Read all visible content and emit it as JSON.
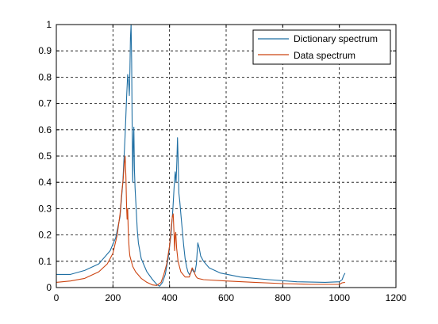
{
  "chart_data": {
    "type": "line",
    "title": "",
    "xlabel": "",
    "ylabel": "",
    "xlim": [
      0,
      1200
    ],
    "ylim": [
      0,
      1
    ],
    "xticks": [
      0,
      200,
      400,
      600,
      800,
      1000,
      1200
    ],
    "yticks": [
      0,
      0.1,
      0.2,
      0.3,
      0.4,
      0.5,
      0.6,
      0.7,
      0.8,
      0.9,
      1
    ],
    "xtick_labels": [
      "0",
      "200",
      "400",
      "600",
      "800",
      "1000",
      "1200"
    ],
    "ytick_labels": [
      "0",
      "0.1",
      "0.2",
      "0.3",
      "0.4",
      "0.5",
      "0.6",
      "0.7",
      "0.8",
      "0.9",
      "1"
    ],
    "grid": true,
    "legend_position": "top-right",
    "series": [
      {
        "name": "Dictionary spectrum",
        "color": "#1f6fa3",
        "x": [
          0,
          50,
          100,
          150,
          190,
          210,
          225,
          235,
          243,
          248,
          252,
          256,
          258,
          260,
          262,
          264,
          266,
          268,
          270,
          272,
          274,
          276,
          278,
          282,
          286,
          290,
          300,
          320,
          340,
          355,
          365,
          375,
          385,
          395,
          405,
          412,
          416,
          420,
          423,
          426,
          428,
          430,
          433,
          436,
          440,
          445,
          450,
          455,
          460,
          465,
          470,
          475,
          480,
          485,
          490,
          495,
          500,
          505,
          510,
          520,
          540,
          580,
          650,
          750,
          850,
          950,
          1000,
          1010,
          1015,
          1020
        ],
        "y": [
          0.05,
          0.05,
          0.065,
          0.09,
          0.14,
          0.19,
          0.27,
          0.4,
          0.58,
          0.72,
          0.81,
          0.77,
          0.73,
          0.82,
          0.95,
          1.0,
          0.86,
          0.6,
          0.4,
          0.55,
          0.61,
          0.45,
          0.38,
          0.3,
          0.22,
          0.17,
          0.11,
          0.06,
          0.03,
          0.012,
          0.005,
          0.02,
          0.05,
          0.11,
          0.2,
          0.3,
          0.38,
          0.44,
          0.4,
          0.48,
          0.57,
          0.5,
          0.36,
          0.33,
          0.28,
          0.22,
          0.16,
          0.11,
          0.08,
          0.06,
          0.05,
          0.055,
          0.07,
          0.06,
          0.06,
          0.09,
          0.17,
          0.15,
          0.12,
          0.1,
          0.075,
          0.055,
          0.04,
          0.03,
          0.022,
          0.02,
          0.022,
          0.03,
          0.045,
          0.055
        ]
      },
      {
        "name": "Data spectrum",
        "color": "#cc4411",
        "x": [
          0,
          50,
          100,
          150,
          180,
          200,
          215,
          225,
          232,
          236,
          240,
          243,
          246,
          248,
          250,
          252,
          254,
          256,
          258,
          260,
          265,
          270,
          280,
          300,
          320,
          340,
          355,
          370,
          380,
          390,
          400,
          405,
          410,
          413,
          416,
          418,
          420,
          422,
          425,
          430,
          440,
          455,
          470,
          480,
          485,
          490,
          495,
          500,
          520,
          600,
          700,
          800,
          900,
          1000,
          1010,
          1020
        ],
        "y": [
          0.02,
          0.025,
          0.035,
          0.06,
          0.09,
          0.13,
          0.2,
          0.28,
          0.37,
          0.41,
          0.47,
          0.5,
          0.42,
          0.31,
          0.26,
          0.3,
          0.22,
          0.17,
          0.14,
          0.12,
          0.1,
          0.08,
          0.06,
          0.035,
          0.02,
          0.01,
          0.008,
          0.02,
          0.05,
          0.09,
          0.16,
          0.22,
          0.27,
          0.28,
          0.2,
          0.14,
          0.2,
          0.21,
          0.15,
          0.1,
          0.06,
          0.04,
          0.04,
          0.075,
          0.065,
          0.05,
          0.04,
          0.035,
          0.03,
          0.025,
          0.02,
          0.015,
          0.012,
          0.012,
          0.018,
          0.02
        ]
      }
    ]
  }
}
